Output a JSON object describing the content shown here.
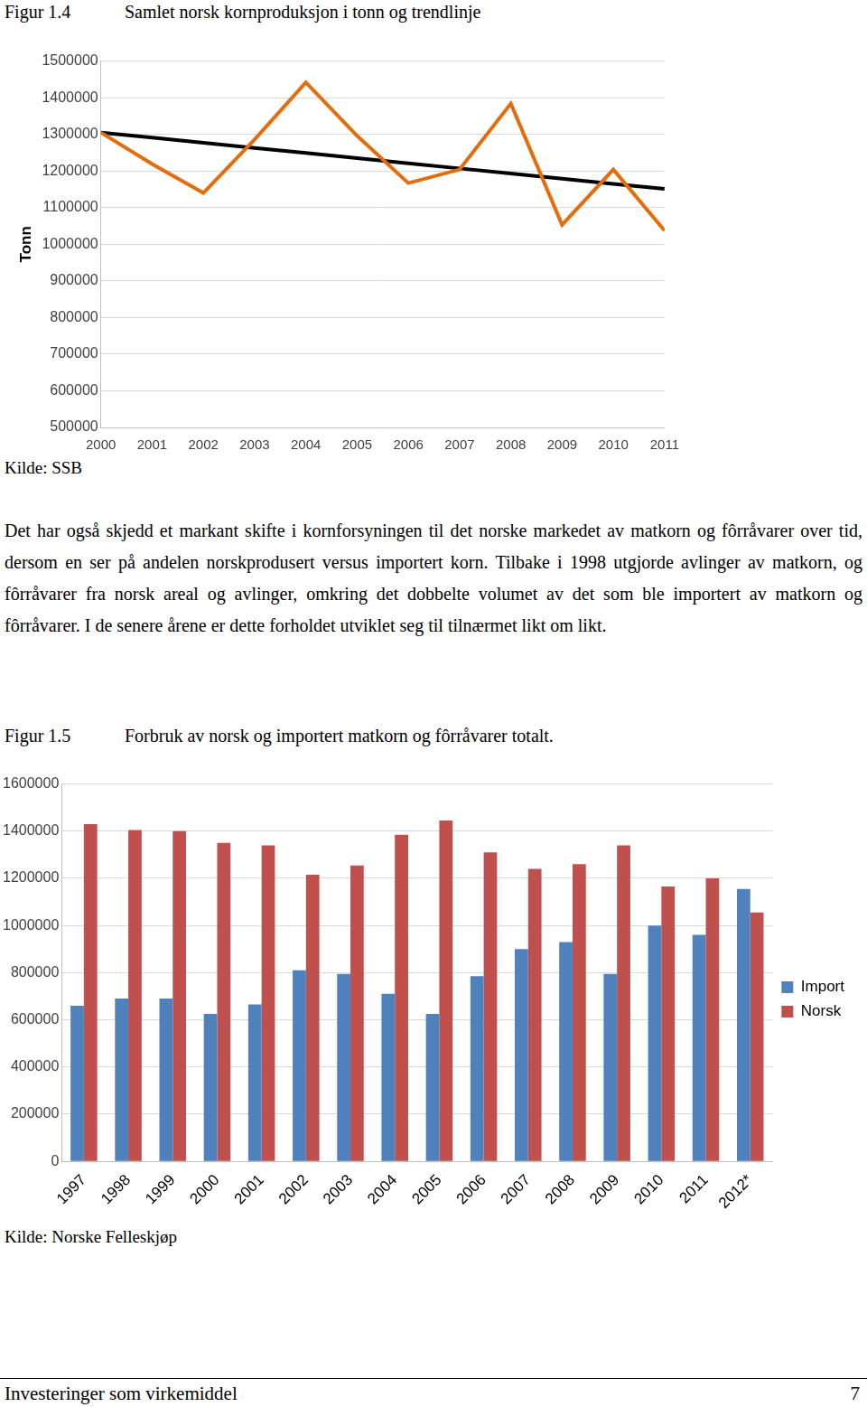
{
  "document": {
    "figures": [
      {
        "label": "Figur 1.4",
        "caption": "Samlet norsk kornproduksjon i tonn og trendlinje",
        "source": "Kilde: SSB"
      },
      {
        "label": "Figur 1.5",
        "caption": "Forbruk av norsk og importert matkorn og fôrråvarer totalt.",
        "source": "Kilde: Norske Felleskjøp"
      }
    ],
    "paragraph": "Det har også skjedd et markant skifte i kornforsyningen til det norske markedet av matkorn og fôrråvarer over tid, dersom en ser på andelen norskprodusert versus importert korn. Tilbake i 1998 utgjorde avlinger av matkorn, og fôrråvarer fra norsk areal og avlinger, omkring det dobbelte volumet av det som ble importert av matkorn og fôrråvarer. I de senere årene er dette forholdet utviklet seg til tilnærmet likt om likt.",
    "footer": {
      "title": "Investeringer som virkemiddel",
      "page": "7"
    }
  },
  "chart_data": [
    {
      "type": "line",
      "categories": [
        "2000",
        "2001",
        "2002",
        "2003",
        "2004",
        "2005",
        "2006",
        "2007",
        "2008",
        "2009",
        "2010",
        "2011"
      ],
      "series": [
        {
          "color": "#e46c0a",
          "values": [
            1305000,
            1219000,
            1140000,
            1286000,
            1442000,
            1296000,
            1167000,
            1204000,
            1384000,
            1053000,
            1204000,
            1037000
          ]
        },
        {
          "color": "#000000",
          "values": [
            1305000,
            1291000,
            1277000,
            1263000,
            1249000,
            1235000,
            1221000,
            1207000,
            1193000,
            1179000,
            1165000,
            1151000
          ]
        }
      ],
      "ylabel": "Tonn",
      "ylim": [
        500000,
        1500000
      ],
      "yticks": [
        500000,
        600000,
        700000,
        800000,
        900000,
        1000000,
        1100000,
        1200000,
        1300000,
        1400000,
        1500000
      ],
      "grid": true
    },
    {
      "type": "bar",
      "categories": [
        "1997",
        "1998",
        "1999",
        "2000",
        "2001",
        "2002",
        "2003",
        "2004",
        "2005",
        "2006",
        "2007",
        "2008",
        "2009",
        "2010",
        "2011",
        "2012*"
      ],
      "series": [
        {
          "name": "Import",
          "color": "#4f81bd",
          "values": [
            660000,
            690000,
            690000,
            625000,
            665000,
            810000,
            795000,
            710000,
            625000,
            785000,
            900000,
            930000,
            795000,
            1000000,
            960000,
            1155000
          ]
        },
        {
          "name": "Norsk",
          "color": "#c0504d",
          "values": [
            1430000,
            1405000,
            1400000,
            1350000,
            1340000,
            1215000,
            1255000,
            1385000,
            1445000,
            1310000,
            1240000,
            1260000,
            1340000,
            1165000,
            1200000,
            1055000
          ]
        }
      ],
      "ylim": [
        0,
        1600000
      ],
      "yticks": [
        0,
        200000,
        400000,
        600000,
        800000,
        1000000,
        1200000,
        1400000,
        1600000
      ],
      "grid": true,
      "legend": "right"
    }
  ]
}
